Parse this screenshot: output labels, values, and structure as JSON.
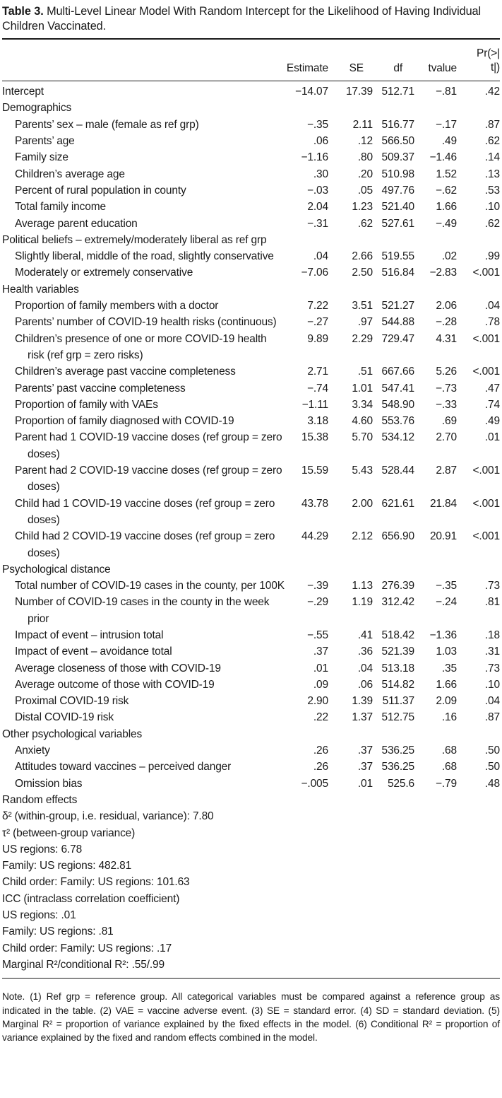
{
  "caption": {
    "label": "Table 3.",
    "text": "Multi-Level Linear Model With Random Intercept for the Likelihood of Having Individual Children Vaccinated."
  },
  "header": {
    "estimate": "Estimate",
    "se": "SE",
    "df": "df",
    "tvalue": "tvalue",
    "p_line1": "Pr(>|",
    "p_line2": "t|)"
  },
  "rows": [
    {
      "type": "top",
      "label": "Intercept",
      "estimate": "−14.07",
      "se": "17.39",
      "df": "512.71",
      "tvalue": "−.81",
      "p": ".42"
    },
    {
      "type": "section",
      "label": "Demographics"
    },
    {
      "type": "var",
      "label": "Parents’ sex – male (female as ref grp)",
      "estimate": "−.35",
      "se": "2.11",
      "df": "516.77",
      "tvalue": "−.17",
      "p": ".87"
    },
    {
      "type": "var",
      "label": "Parents’ age",
      "estimate": ".06",
      "se": ".12",
      "df": "566.50",
      "tvalue": ".49",
      "p": ".62"
    },
    {
      "type": "var",
      "label": "Family size",
      "estimate": "−1.16",
      "se": ".80",
      "df": "509.37",
      "tvalue": "−1.46",
      "p": ".14"
    },
    {
      "type": "var",
      "label": "Children’s average age",
      "estimate": ".30",
      "se": ".20",
      "df": "510.98",
      "tvalue": "1.52",
      "p": ".13"
    },
    {
      "type": "var",
      "label": "Percent of rural population in county",
      "estimate": "−.03",
      "se": ".05",
      "df": "497.76",
      "tvalue": "−.62",
      "p": ".53"
    },
    {
      "type": "var",
      "label": "Total family income",
      "estimate": "2.04",
      "se": "1.23",
      "df": "521.40",
      "tvalue": "1.66",
      "p": ".10"
    },
    {
      "type": "var",
      "label": "Average parent education",
      "estimate": "−.31",
      "se": ".62",
      "df": "527.61",
      "tvalue": "−.49",
      "p": ".62"
    },
    {
      "type": "section",
      "label": "Political beliefs – extremely/moderately liberal as ref grp"
    },
    {
      "type": "var",
      "label": "Slightly liberal, middle of the road, slightly conservative",
      "estimate": ".04",
      "se": "2.66",
      "df": "519.55",
      "tvalue": ".02",
      "p": ".99"
    },
    {
      "type": "var",
      "label": "Moderately or extremely conservative",
      "estimate": "−7.06",
      "se": "2.50",
      "df": "516.84",
      "tvalue": "−2.83",
      "p": "<.001"
    },
    {
      "type": "section",
      "label": "Health variables"
    },
    {
      "type": "var",
      "label": "Proportion of family members with a doctor",
      "estimate": "7.22",
      "se": "3.51",
      "df": "521.27",
      "tvalue": "2.06",
      "p": ".04"
    },
    {
      "type": "var",
      "label": "Parents’ number of COVID-19 health risks (continuous)",
      "estimate": "−.27",
      "se": ".97",
      "df": "544.88",
      "tvalue": "−.28",
      "p": ".78"
    },
    {
      "type": "var",
      "label": "Children’s presence of one or more COVID-19 health risk (ref grp = zero risks)",
      "estimate": "9.89",
      "se": "2.29",
      "df": "729.47",
      "tvalue": "4.31",
      "p": "<.001"
    },
    {
      "type": "var",
      "label": "Children’s average past vaccine completeness",
      "estimate": "2.71",
      "se": ".51",
      "df": "667.66",
      "tvalue": "5.26",
      "p": "<.001"
    },
    {
      "type": "var",
      "label": "Parents’ past vaccine completeness",
      "estimate": "−.74",
      "se": "1.01",
      "df": "547.41",
      "tvalue": "−.73",
      "p": ".47"
    },
    {
      "type": "var",
      "label": "Proportion of family with VAEs",
      "estimate": "−1.11",
      "se": "3.34",
      "df": "548.90",
      "tvalue": "−.33",
      "p": ".74"
    },
    {
      "type": "var",
      "label": "Proportion of family diagnosed with COVID-19",
      "estimate": "3.18",
      "se": "4.60",
      "df": "553.76",
      "tvalue": ".69",
      "p": ".49"
    },
    {
      "type": "var",
      "label": "Parent had 1 COVID-19 vaccine doses (ref group = zero doses)",
      "estimate": "15.38",
      "se": "5.70",
      "df": "534.12",
      "tvalue": "2.70",
      "p": ".01"
    },
    {
      "type": "var",
      "label": "Parent had 2 COVID-19 vaccine doses (ref group = zero doses)",
      "estimate": "15.59",
      "se": "5.43",
      "df": "528.44",
      "tvalue": "2.87",
      "p": "<.001"
    },
    {
      "type": "var",
      "label": "Child had 1 COVID-19 vaccine doses (ref group = zero doses)",
      "estimate": "43.78",
      "se": "2.00",
      "df": "621.61",
      "tvalue": "21.84",
      "p": "<.001"
    },
    {
      "type": "var",
      "label": "Child had 2 COVID-19 vaccine doses (ref group = zero doses)",
      "estimate": "44.29",
      "se": "2.12",
      "df": "656.90",
      "tvalue": "20.91",
      "p": "<.001"
    },
    {
      "type": "section",
      "label": "Psychological distance"
    },
    {
      "type": "var",
      "label": "Total number of COVID-19 cases in the county, per 100K",
      "estimate": "−.39",
      "se": "1.13",
      "df": "276.39",
      "tvalue": "−.35",
      "p": ".73"
    },
    {
      "type": "var",
      "label": "Number of COVID-19 cases in the county in the week prior",
      "estimate": "−.29",
      "se": "1.19",
      "df": "312.42",
      "tvalue": "−.24",
      "p": ".81"
    },
    {
      "type": "var",
      "label": "Impact of event – intrusion total",
      "estimate": "−.55",
      "se": ".41",
      "df": "518.42",
      "tvalue": "−1.36",
      "p": ".18"
    },
    {
      "type": "var",
      "label": "Impact of event – avoidance total",
      "estimate": ".37",
      "se": ".36",
      "df": "521.39",
      "tvalue": "1.03",
      "p": ".31"
    },
    {
      "type": "var",
      "label": "Average closeness of those with COVID-19",
      "estimate": ".01",
      "se": ".04",
      "df": "513.18",
      "tvalue": ".35",
      "p": ".73"
    },
    {
      "type": "var",
      "label": "Average outcome of those with COVID-19",
      "estimate": ".09",
      "se": ".06",
      "df": "514.82",
      "tvalue": "1.66",
      "p": ".10"
    },
    {
      "type": "var",
      "label": "Proximal COVID-19 risk",
      "estimate": "2.90",
      "se": "1.39",
      "df": "511.37",
      "tvalue": "2.09",
      "p": ".04"
    },
    {
      "type": "var",
      "label": "Distal COVID-19 risk",
      "estimate": ".22",
      "se": "1.37",
      "df": "512.75",
      "tvalue": ".16",
      "p": ".87"
    },
    {
      "type": "section",
      "label": "Other psychological variables"
    },
    {
      "type": "var",
      "label": "Anxiety",
      "estimate": ".26",
      "se": ".37",
      "df": "536.25",
      "tvalue": ".68",
      "p": ".50"
    },
    {
      "type": "var",
      "label": "Attitudes toward vaccines – perceived danger",
      "estimate": ".26",
      "se": ".37",
      "df": "536.25",
      "tvalue": ".68",
      "p": ".50"
    },
    {
      "type": "var",
      "label": "Omission bias",
      "estimate": "−.005",
      "se": ".01",
      "df": "525.6",
      "tvalue": "−.79",
      "p": ".48"
    },
    {
      "type": "section",
      "label": "Random effects"
    },
    {
      "type": "plain",
      "label": "δ² (within-group, i.e. residual, variance): 7.80"
    },
    {
      "type": "plain",
      "label": "τ² (between-group variance)"
    },
    {
      "type": "plain",
      "label": "US regions: 6.78"
    },
    {
      "type": "plain",
      "label": "Family: US regions: 482.81"
    },
    {
      "type": "plain",
      "label": "Child order: Family: US regions: 101.63"
    },
    {
      "type": "plain",
      "label": "ICC (intraclass correlation coefficient)"
    },
    {
      "type": "plain",
      "label": "US regions: .01"
    },
    {
      "type": "plain",
      "label": "Family: US regions: .81"
    },
    {
      "type": "plain",
      "label": "Child order: Family: US regions: .17"
    },
    {
      "type": "plain",
      "label": "Marginal R²/conditional R²: .55/.99"
    }
  ],
  "note": "Note. (1) Ref grp = reference group. All categorical variables must be compared against a reference group as indicated in the table. (2) VAE = vaccine adverse event. (3) SE = standard error. (4) SD = standard deviation. (5) Marginal R² = proportion of variance explained by the fixed effects in the model. (6) Conditional R² = proportion of variance explained by the fixed and random effects combined in the model."
}
